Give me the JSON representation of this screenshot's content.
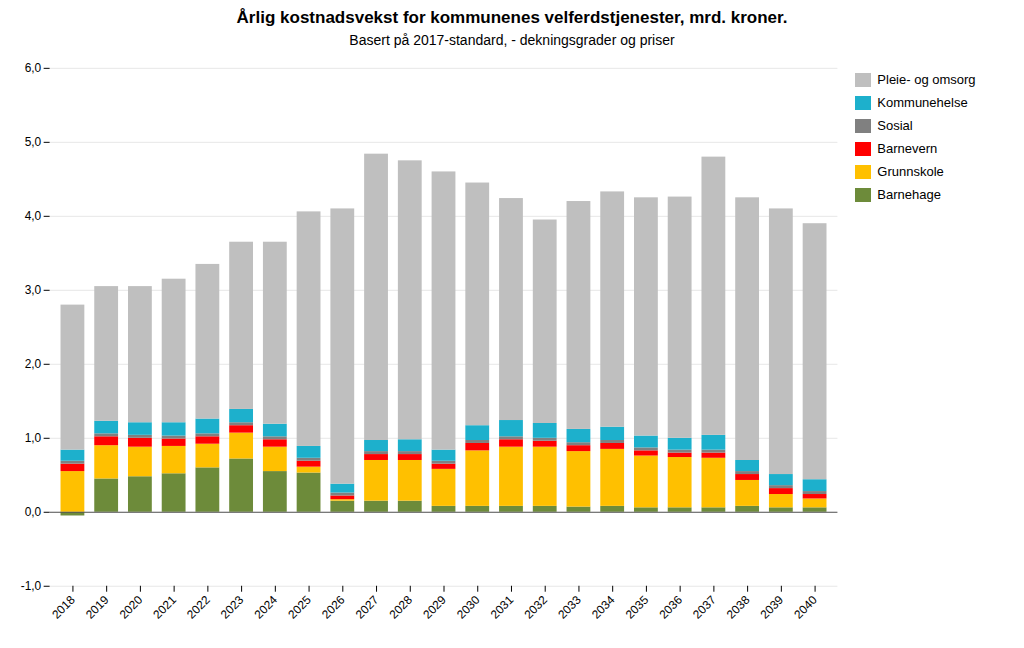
{
  "chart_data": {
    "type": "bar",
    "title": "Årlig kostnadsvekst for kommunenes velferdstjenester, mrd. kroner.",
    "subtitle": "Basert på 2017-standard, - dekningsgrader og priser",
    "categories": [
      "2018",
      "2019",
      "2020",
      "2021",
      "2022",
      "2023",
      "2024",
      "2025",
      "2026",
      "2027",
      "2028",
      "2029",
      "2030",
      "2031",
      "2032",
      "2033",
      "2034",
      "2035",
      "2036",
      "2037",
      "2038",
      "2039",
      "2040"
    ],
    "series": [
      {
        "name": "Barnehage",
        "color": "#6d8b3a",
        "values": [
          -0.05,
          0.45,
          0.48,
          0.52,
          0.6,
          0.72,
          0.55,
          0.53,
          0.15,
          0.15,
          0.15,
          0.08,
          0.08,
          0.08,
          0.08,
          0.07,
          0.08,
          0.06,
          0.06,
          0.06,
          0.08,
          0.06,
          0.06
        ]
      },
      {
        "name": "Grunnskole",
        "color": "#ffc000",
        "values": [
          0.55,
          0.45,
          0.4,
          0.37,
          0.32,
          0.35,
          0.33,
          0.08,
          0.02,
          0.55,
          0.55,
          0.5,
          0.75,
          0.8,
          0.8,
          0.75,
          0.77,
          0.7,
          0.68,
          0.67,
          0.35,
          0.18,
          0.12
        ]
      },
      {
        "name": "Barnevern",
        "color": "#ff0000",
        "values": [
          0.1,
          0.12,
          0.12,
          0.1,
          0.1,
          0.1,
          0.1,
          0.08,
          0.05,
          0.08,
          0.08,
          0.07,
          0.1,
          0.1,
          0.08,
          0.08,
          0.08,
          0.07,
          0.06,
          0.07,
          0.08,
          0.08,
          0.06
        ]
      },
      {
        "name": "Sosial",
        "color": "#808080",
        "values": [
          0.04,
          0.04,
          0.04,
          0.04,
          0.04,
          0.04,
          0.04,
          0.04,
          0.04,
          0.04,
          0.04,
          0.04,
          0.04,
          0.04,
          0.04,
          0.04,
          0.04,
          0.04,
          0.04,
          0.04,
          0.04,
          0.04,
          0.04
        ]
      },
      {
        "name": "Kommunehelse",
        "color": "#1db0cc",
        "values": [
          0.15,
          0.17,
          0.17,
          0.18,
          0.2,
          0.18,
          0.17,
          0.16,
          0.12,
          0.15,
          0.16,
          0.15,
          0.2,
          0.22,
          0.2,
          0.18,
          0.18,
          0.16,
          0.16,
          0.2,
          0.15,
          0.15,
          0.16
        ]
      },
      {
        "name": "Pleie- og omsorg",
        "color": "#bfbfbf",
        "values": [
          1.96,
          1.82,
          1.84,
          1.94,
          2.09,
          2.26,
          2.46,
          3.17,
          3.72,
          3.87,
          3.77,
          3.76,
          3.28,
          3.0,
          2.75,
          3.08,
          3.18,
          3.22,
          3.26,
          3.76,
          3.55,
          3.59,
          3.46
        ]
      }
    ],
    "stacked": true,
    "ylim": [
      -1.0,
      6.0
    ],
    "yticks": [
      {
        "value": -1.0,
        "label": "-1,0"
      },
      {
        "value": 0.0,
        "label": "0,0"
      },
      {
        "value": 1.0,
        "label": "1,0"
      },
      {
        "value": 2.0,
        "label": "2,0"
      },
      {
        "value": 3.0,
        "label": "3,0"
      },
      {
        "value": 4.0,
        "label": "4,0"
      },
      {
        "value": 5.0,
        "label": "5,0"
      },
      {
        "value": 6.0,
        "label": "6,0"
      }
    ],
    "grid": true,
    "legend": "right"
  }
}
